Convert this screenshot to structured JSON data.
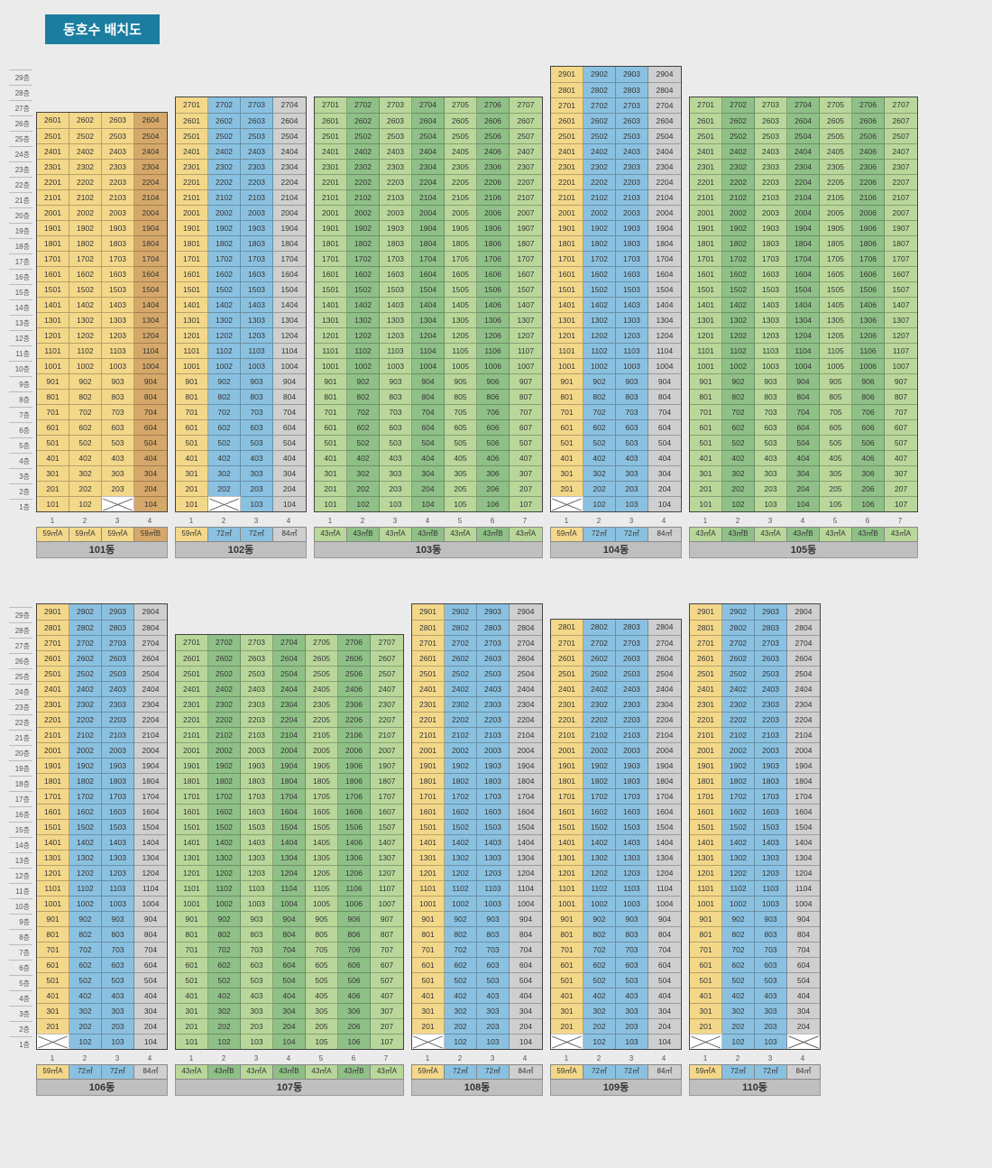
{
  "title": "동호수 배치도",
  "colors": {
    "c59A": "#f4d88a",
    "c59B": "#d5a86a",
    "c72": "#8bc1e0",
    "c84": "#cfcfcf",
    "c43A": "#b9d79a",
    "c43B": "#8fc087"
  },
  "type_labels": {
    "c59A": "59㎡A",
    "c59B": "59㎡B",
    "c72": "72㎡",
    "c84": "84㎡",
    "c43A": "43㎡A",
    "c43B": "43㎡B"
  },
  "max_floors_row1": 29,
  "max_floors_row2": 29,
  "buildings": [
    {
      "row": 1,
      "name": "101동",
      "floors": [
        1,
        26
      ],
      "lines": [
        "c59A",
        "c59A",
        "c59A",
        "c59B"
      ],
      "xcells": [
        [
          1,
          3
        ]
      ]
    },
    {
      "row": 1,
      "name": "102동",
      "floors": [
        1,
        27
      ],
      "lines": [
        "c59A",
        "c72",
        "c72",
        "c84"
      ],
      "xcells": [
        [
          1,
          2
        ]
      ]
    },
    {
      "row": 1,
      "name": "103동",
      "floors": [
        1,
        27
      ],
      "lines": [
        "c43A",
        "c43B",
        "c43A",
        "c43B",
        "c43A",
        "c43B",
        "c43A"
      ],
      "xcells": []
    },
    {
      "row": 1,
      "name": "104동",
      "floors": [
        1,
        29
      ],
      "lines": [
        "c59A",
        "c72",
        "c72",
        "c84"
      ],
      "xcells": [
        [
          1,
          1
        ]
      ]
    },
    {
      "row": 1,
      "name": "105동",
      "floors": [
        1,
        27
      ],
      "lines": [
        "c43A",
        "c43B",
        "c43A",
        "c43B",
        "c43A",
        "c43B",
        "c43A"
      ],
      "xcells": []
    },
    {
      "row": 2,
      "name": "106동",
      "floors": [
        1,
        29
      ],
      "lines": [
        "c59A",
        "c72",
        "c72",
        "c84"
      ],
      "xcells": [
        [
          1,
          1
        ]
      ]
    },
    {
      "row": 2,
      "name": "107동",
      "floors": [
        1,
        27
      ],
      "lines": [
        "c43A",
        "c43B",
        "c43A",
        "c43B",
        "c43A",
        "c43B",
        "c43A"
      ],
      "xcells": []
    },
    {
      "row": 2,
      "name": "108동",
      "floors": [
        1,
        29
      ],
      "lines": [
        "c59A",
        "c72",
        "c72",
        "c84"
      ],
      "xcells": [
        [
          1,
          1
        ]
      ]
    },
    {
      "row": 2,
      "name": "109동",
      "floors": [
        1,
        28
      ],
      "lines": [
        "c59A",
        "c72",
        "c72",
        "c84"
      ],
      "xcells": [
        [
          1,
          1
        ]
      ]
    },
    {
      "row": 2,
      "name": "110동",
      "floors": [
        1,
        29
      ],
      "lines": [
        "c59A",
        "c72",
        "c72",
        "c84"
      ],
      "xcells": [
        [
          1,
          1
        ],
        [
          1,
          4
        ]
      ]
    }
  ]
}
